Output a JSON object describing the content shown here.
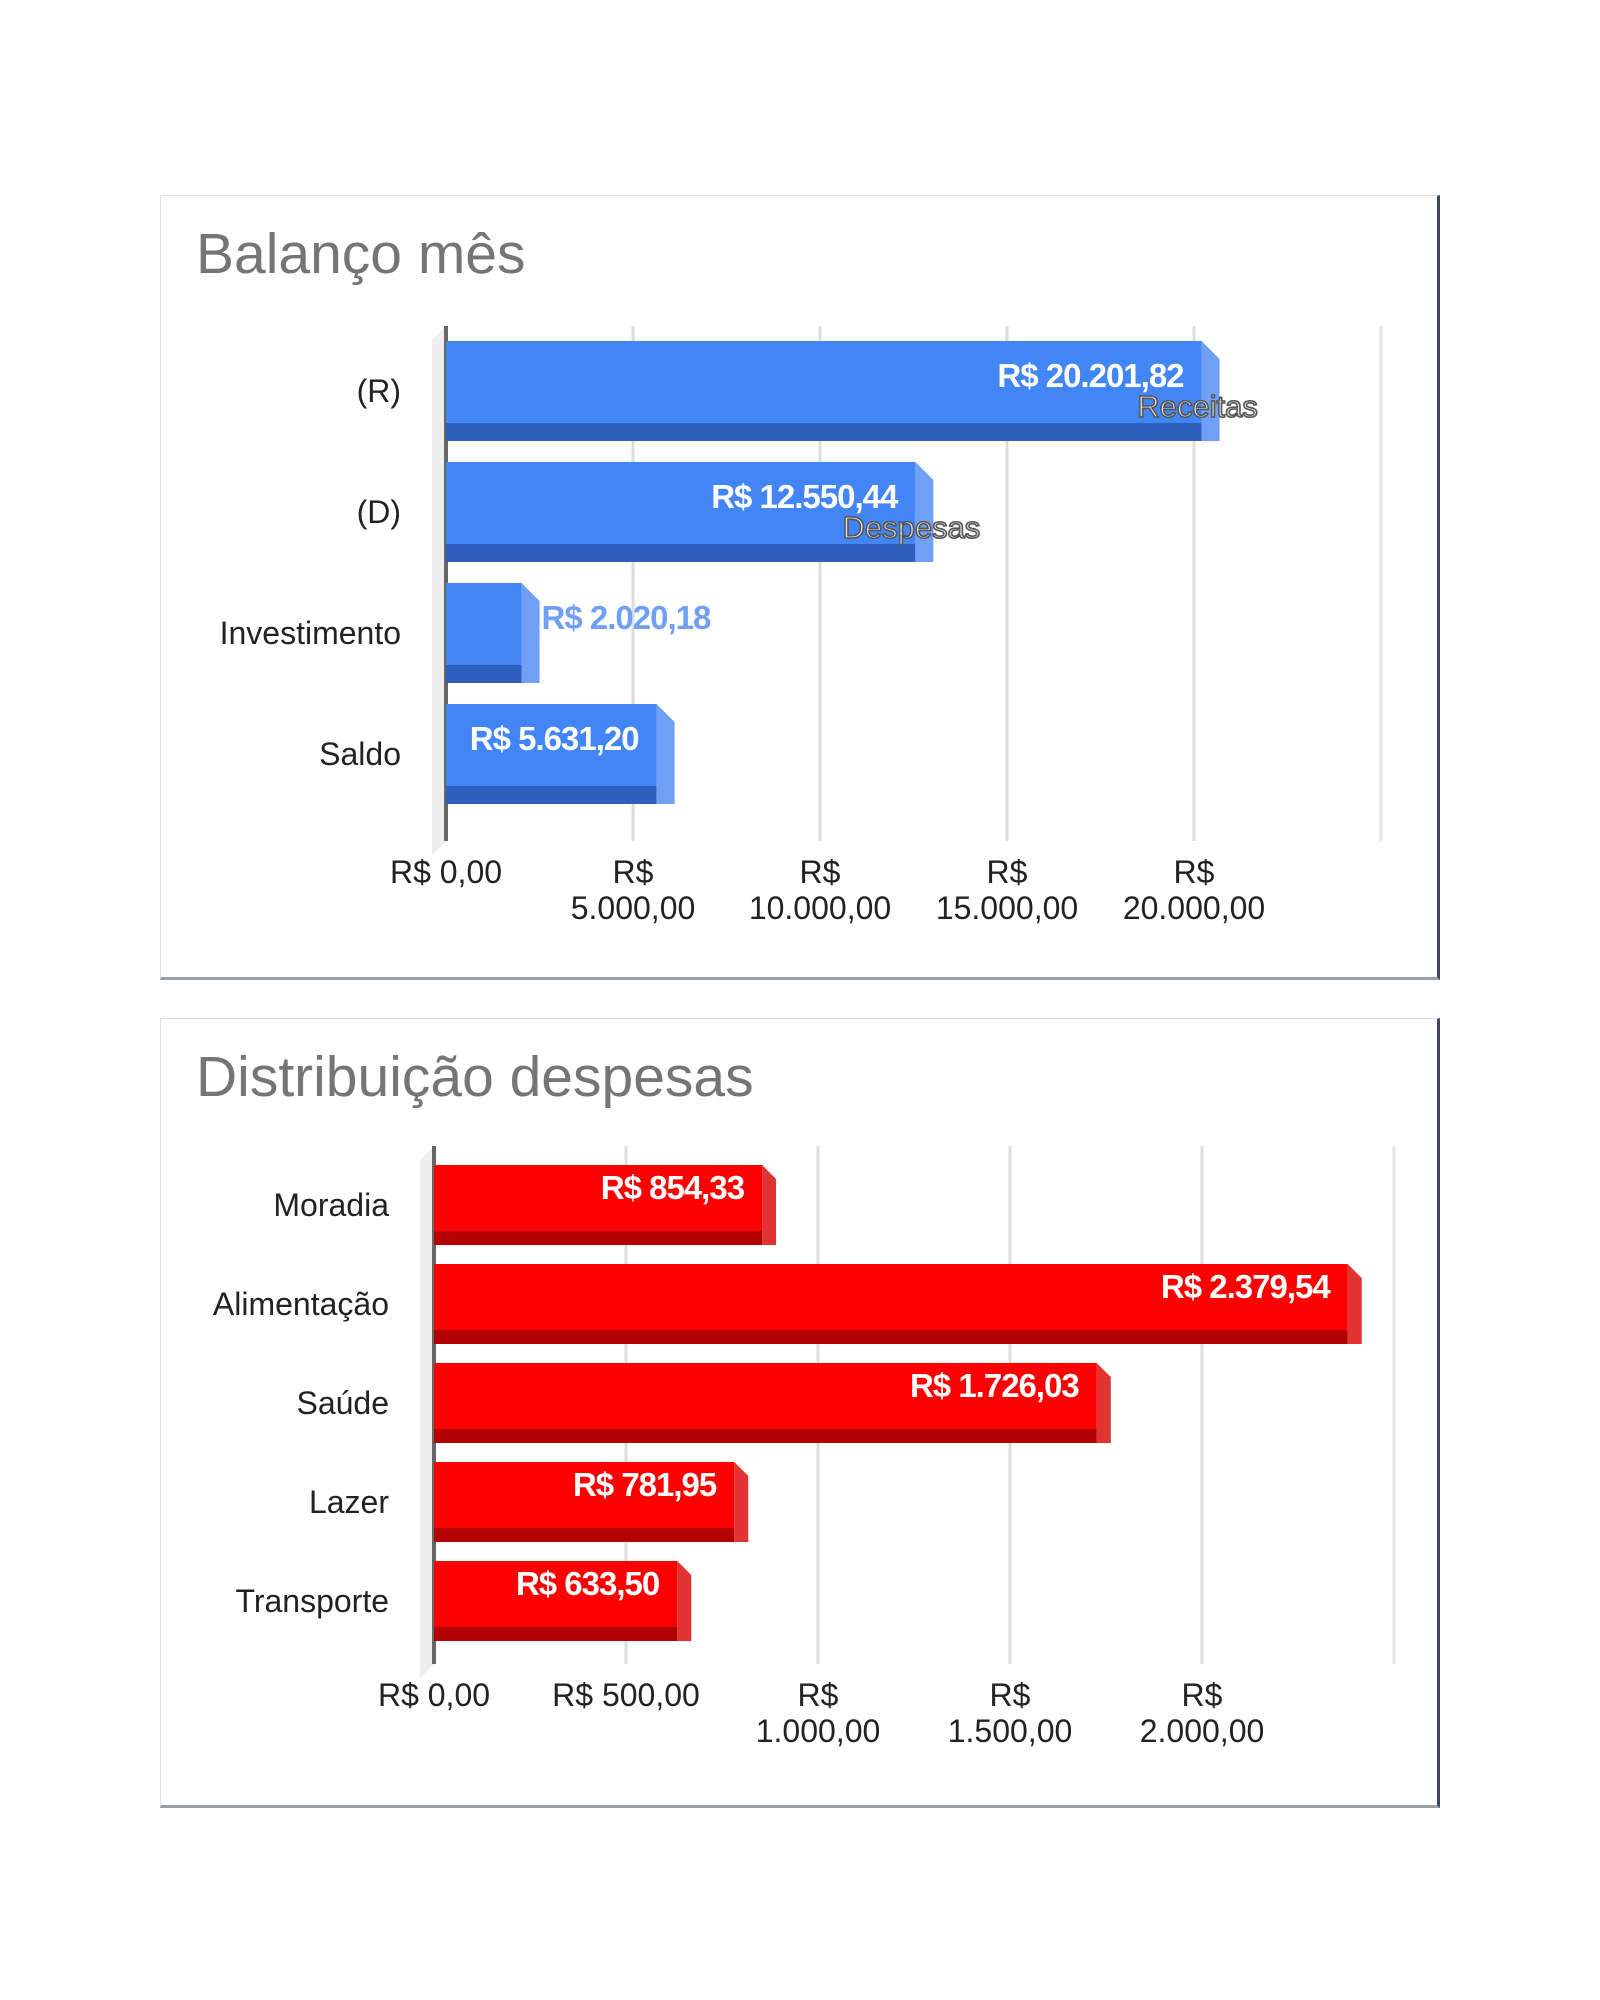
{
  "colors": {
    "bar_blue": "#4285f4",
    "bar_blue_dark": "#2f5fbd",
    "bar_blue_side": "#6fa0f5",
    "bar_red": "#ff0000",
    "bar_red_dark": "#b30000",
    "bar_red_side": "#e23333",
    "title_gray": "#757575",
    "label_dark": "#222222",
    "annotation_gray": "#555555"
  },
  "chart_data": [
    {
      "type": "bar",
      "orientation": "horizontal",
      "title": "Balanço mês",
      "categories": [
        "(R)",
        "(D)",
        "Investimento",
        "Saldo"
      ],
      "values": [
        20201.82,
        12550.44,
        2020.18,
        5631.2
      ],
      "data_labels": [
        "R$ 20.201,82",
        "R$ 12.550,44",
        "R$ 2.020,18",
        "R$ 5.631,20"
      ],
      "annotations": [
        "Receitas",
        "Despesas",
        "",
        ""
      ],
      "x_ticks": [
        0,
        5000,
        10000,
        15000,
        20000
      ],
      "x_tick_labels": [
        [
          "R$ 0,00"
        ],
        [
          "R$",
          "5.000,00"
        ],
        [
          "R$",
          "10.000,00"
        ],
        [
          "R$",
          "15.000,00"
        ],
        [
          "R$",
          "20.000,00"
        ]
      ],
      "xlim": [
        0,
        25000
      ],
      "grid": true,
      "style": "3d"
    },
    {
      "type": "bar",
      "orientation": "horizontal",
      "title": "Distribuição despesas",
      "categories": [
        "Moradia",
        "Alimentação",
        "Saúde",
        "Lazer",
        "Transporte"
      ],
      "values": [
        854.33,
        2379.54,
        1726.03,
        781.95,
        633.5
      ],
      "data_labels": [
        "R$ 854,33",
        "R$ 2.379,54",
        "R$ 1.726,03",
        "R$ 781,95",
        "R$ 633,50"
      ],
      "x_ticks": [
        0,
        500,
        1000,
        1500,
        2000
      ],
      "x_tick_labels": [
        [
          "R$ 0,00"
        ],
        [
          "R$ 500,00"
        ],
        [
          "R$",
          "1.000,00"
        ],
        [
          "R$",
          "1.500,00"
        ],
        [
          "R$",
          "2.000,00"
        ]
      ],
      "xlim": [
        0,
        2500
      ],
      "grid": true,
      "style": "3d"
    }
  ]
}
